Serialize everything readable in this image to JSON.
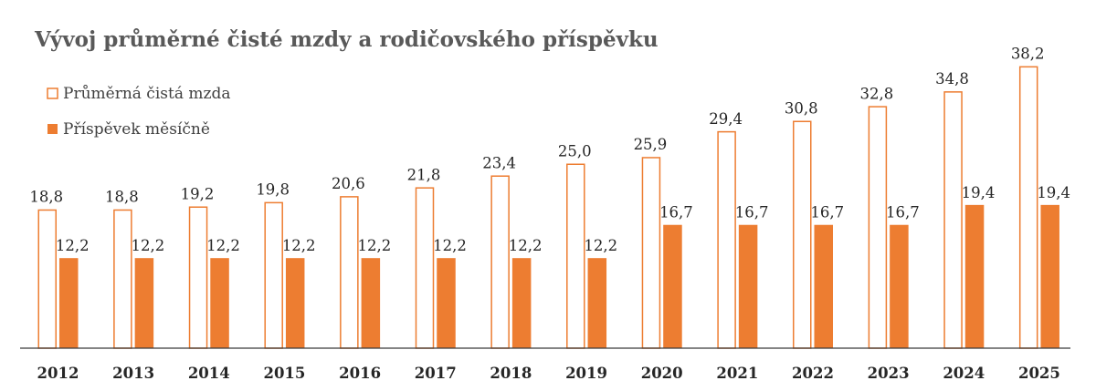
{
  "chart_data": {
    "type": "bar",
    "title": "Vývoj průměrné čisté mzdy a rodičovského příspěvku",
    "categories": [
      "2012",
      "2013",
      "2014",
      "2015",
      "2016",
      "2017",
      "2018",
      "2019",
      "2020",
      "2021",
      "2022",
      "2023",
      "2024",
      "2025"
    ],
    "series": [
      {
        "name": "Průměrná čistá mzda",
        "values": [
          18.8,
          18.8,
          19.2,
          19.8,
          20.6,
          21.8,
          23.4,
          25.0,
          25.9,
          29.4,
          30.8,
          32.8,
          34.8,
          38.2
        ],
        "labels": [
          "18,8",
          "18,8",
          "19,2",
          "19,8",
          "20,6",
          "21,8",
          "23,4",
          "25,0",
          "25,9",
          "29,4",
          "30,8",
          "32,8",
          "34,8",
          "38,2"
        ],
        "color": "#ED7D31",
        "style": "outline"
      },
      {
        "name": "Příspěvek měsíčně",
        "values": [
          12.2,
          12.2,
          12.2,
          12.2,
          12.2,
          12.2,
          12.2,
          12.2,
          16.7,
          16.7,
          16.7,
          16.7,
          19.4,
          19.4
        ],
        "labels": [
          "12,2",
          "12,2",
          "12,2",
          "12,2",
          "12,2",
          "12,2",
          "12,2",
          "12,2",
          "16,7",
          "16,7",
          "16,7",
          "16,7",
          "19,4",
          "19,4"
        ],
        "color": "#ED7D31",
        "style": "filled"
      }
    ],
    "ylim": [
      0,
      40
    ],
    "grid": false,
    "legend_position": "top-left",
    "xlabel": "",
    "ylabel": ""
  }
}
